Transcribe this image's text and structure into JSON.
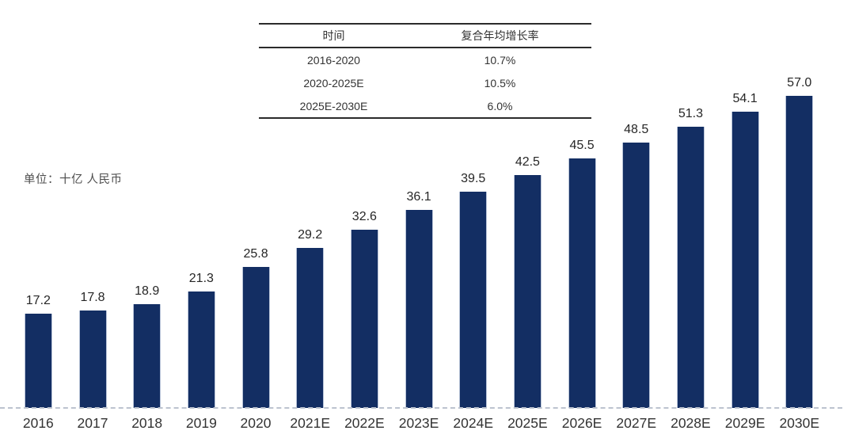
{
  "unit_label": "单位：十亿 人民币",
  "cagr_table": {
    "headers": [
      "时间",
      "复合年均增长率"
    ],
    "rows": [
      [
        "2016-2020",
        "10.7%"
      ],
      [
        "2020-2025E",
        "10.5%"
      ],
      [
        "2025E-2030E",
        "6.0%"
      ]
    ]
  },
  "chart_data": {
    "type": "bar",
    "categories": [
      "2016",
      "2017",
      "2018",
      "2019",
      "2020",
      "2021E",
      "2022E",
      "2023E",
      "2024E",
      "2025E",
      "2026E",
      "2027E",
      "2028E",
      "2029E",
      "2030E"
    ],
    "values": [
      17.2,
      17.8,
      18.9,
      21.3,
      25.8,
      29.2,
      32.6,
      36.1,
      39.5,
      42.5,
      45.5,
      48.5,
      51.3,
      54.1,
      57.0
    ],
    "title": "",
    "xlabel": "",
    "ylabel": "单位：十亿 人民币",
    "ylim": [
      0,
      57
    ],
    "grid": false,
    "legend": "none",
    "value_labels_shown": true,
    "baseline_style": "dashed",
    "bar_color": "#132E63",
    "value_label_color": "#262626",
    "axis_label_color": "#333333"
  }
}
